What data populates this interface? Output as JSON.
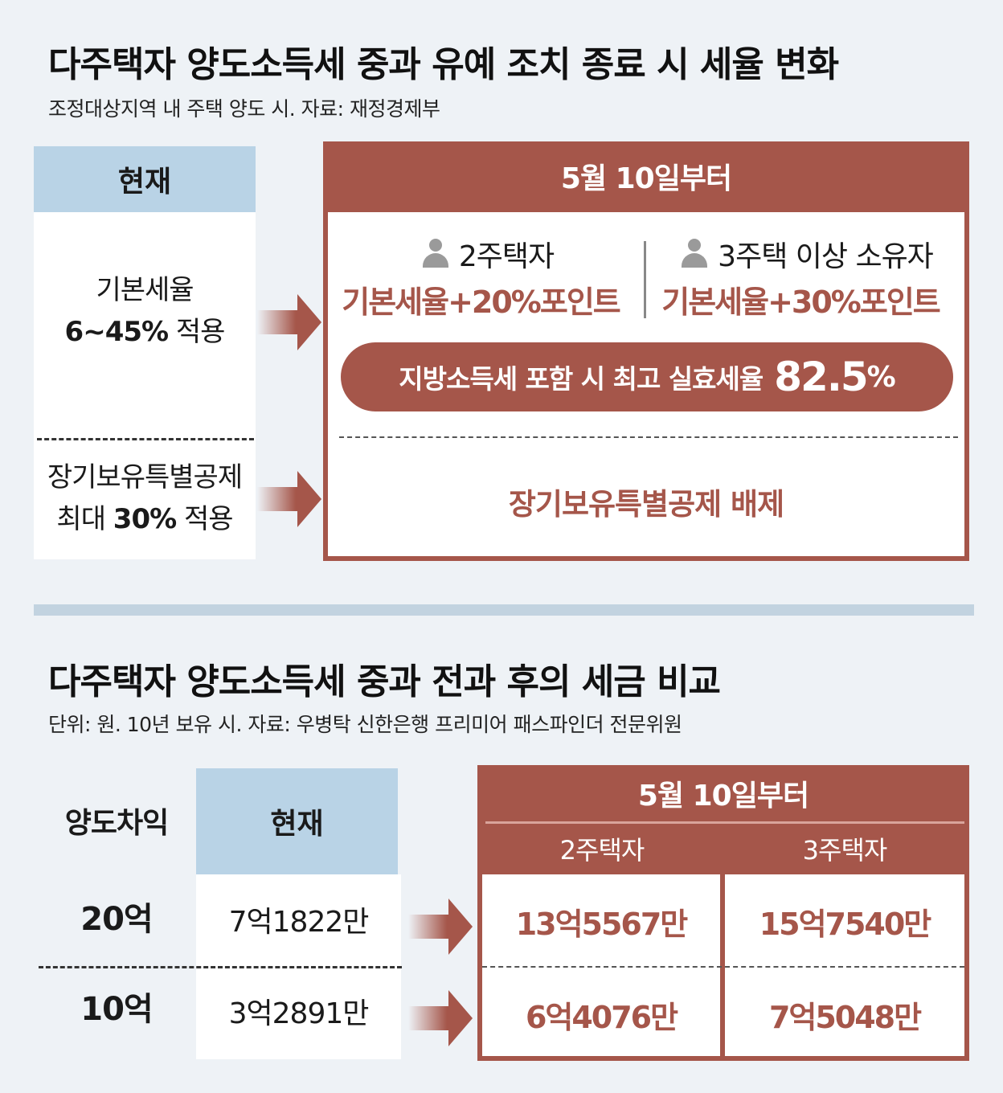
{
  "section1": {
    "title": "다주택자 양도소득세 중과 유예 조치 종료 시 세율 변화",
    "subtitle": "조정대상지역 내 주택 양도 시. 자료: 재정경제부",
    "current_header": "현재",
    "current_basic_line1": "기본세율",
    "current_basic_rate": "6~45%",
    "current_basic_suffix": " 적용",
    "current_ltd_line1": "장기보유특별공제",
    "current_ltd_prefix": "최대 ",
    "current_ltd_rate": "30%",
    "current_ltd_suffix": " 적용",
    "future_header": "5월 10일부터",
    "group2_label": "2주택자",
    "group2_rate": "기본세율+20%포인트",
    "group3_label": "3주택 이상 소유자",
    "group3_rate": "기본세율+30%포인트",
    "pill_text": "지방소득세 포함 시 최고 실효세율",
    "pill_value": "82.5",
    "pill_unit": "%",
    "ltd_excluded": "장기보유특별공제 배제"
  },
  "section2": {
    "title": "다주택자 양도소득세 중과 전과 후의 세금 비교",
    "subtitle": "단위: 원. 10년 보유 시. 자료: 우병탁 신한은행 프리미어 패스파인더 전문위원",
    "col_gain": "양도차익",
    "col_current": "현재",
    "future_header": "5월 10일부터",
    "col_2house": "2주택자",
    "col_3house": "3주택자",
    "rows": [
      {
        "gain": "20억",
        "current": "7억1822만",
        "two": "13억5567만",
        "three": "15억7540만"
      },
      {
        "gain": "10억",
        "current": "3억2891만",
        "two": "6억4076만",
        "three": "7억5048만"
      }
    ]
  },
  "colors": {
    "accent_red": "#a5564a",
    "header_blue": "#b9d3e6",
    "background": "#eef2f6"
  },
  "icons": {
    "person": "person-icon",
    "arrow": "arrow-right-icon"
  }
}
